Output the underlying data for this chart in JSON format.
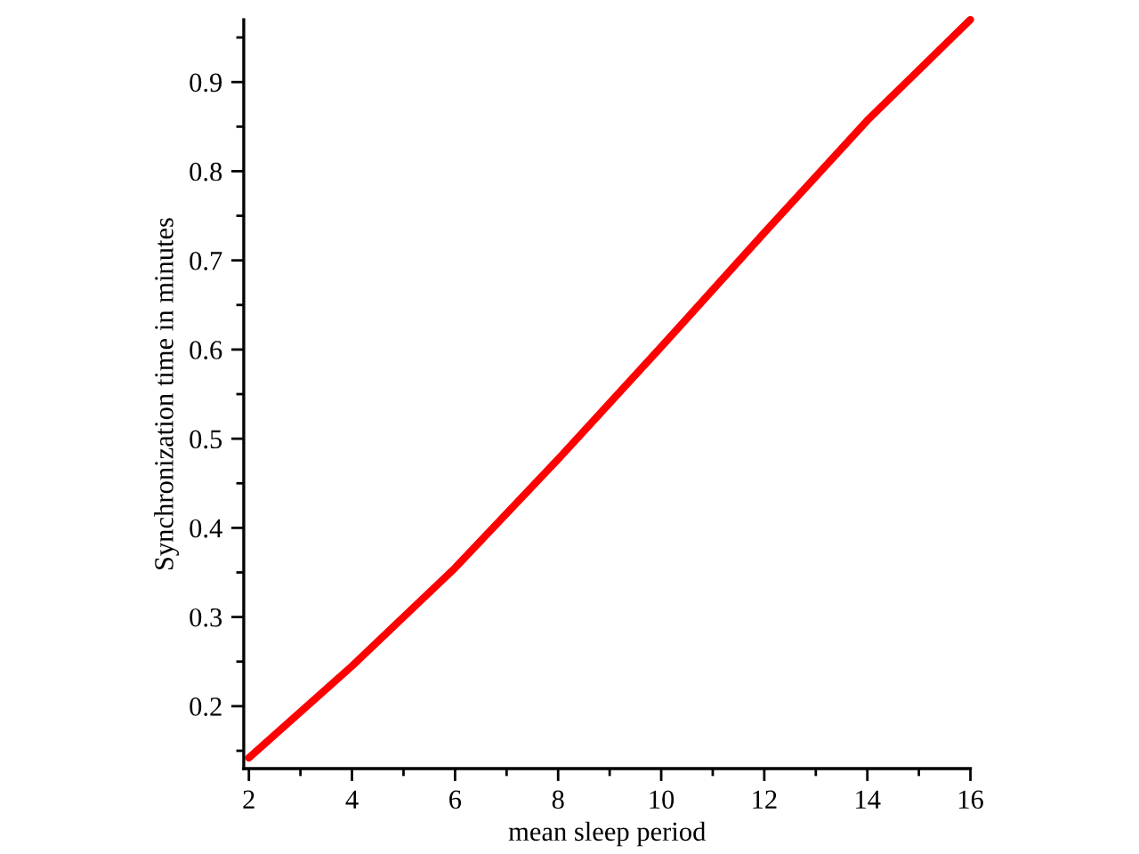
{
  "chart_data": {
    "type": "line",
    "xlabel": "mean sleep period",
    "ylabel": "Synchronization time in minutes",
    "x": [
      2,
      4,
      6,
      8,
      10,
      12,
      14,
      16
    ],
    "series": [
      {
        "color": "#ff0000",
        "values": [
          0.142,
          0.245,
          0.355,
          0.477,
          0.603,
          0.731,
          0.857,
          0.97
        ]
      }
    ],
    "xlim": [
      1.9,
      16
    ],
    "ylim": [
      0.13,
      0.97
    ],
    "xticks": [
      2,
      {
        "value": 3,
        "label": null
      },
      4,
      {
        "value": 5,
        "label": null
      },
      6,
      {
        "value": 7,
        "label": null
      },
      8,
      {
        "value": 9,
        "label": null
      },
      10,
      {
        "value": 11,
        "label": null
      },
      12,
      {
        "value": 13,
        "label": null
      },
      14,
      {
        "value": 15,
        "label": null
      },
      16
    ],
    "yticks": [
      {
        "value": 0.15,
        "label": null
      },
      0.2,
      {
        "value": 0.25,
        "label": null
      },
      0.3,
      {
        "value": 0.35,
        "label": null
      },
      0.4,
      {
        "value": 0.45,
        "label": null
      },
      0.5,
      {
        "value": 0.55,
        "label": null
      },
      0.6,
      {
        "value": 0.65,
        "label": null
      },
      0.7,
      {
        "value": 0.75,
        "label": null
      },
      0.8,
      {
        "value": 0.85,
        "label": null
      },
      0.9,
      {
        "value": 0.95,
        "label": null
      }
    ],
    "marker": "none",
    "line_style": "solid"
  }
}
